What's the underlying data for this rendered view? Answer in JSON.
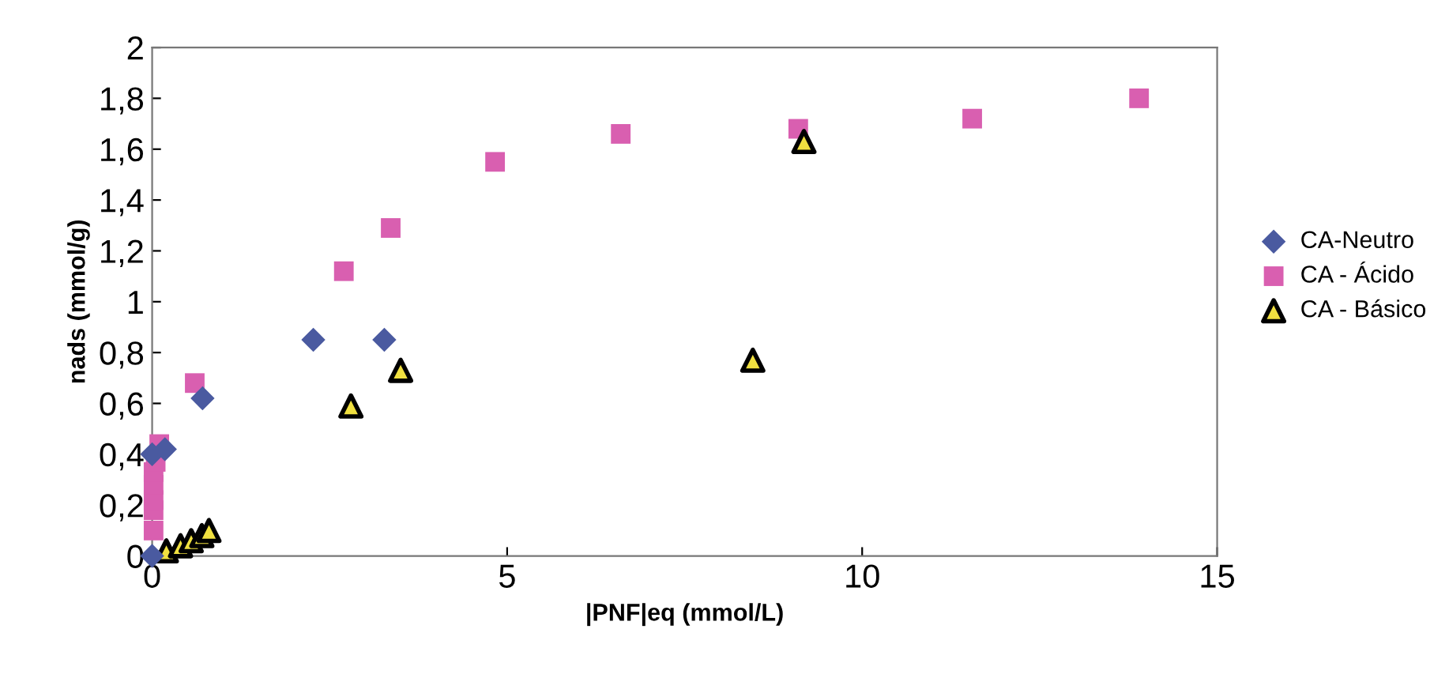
{
  "chart_data": {
    "type": "scatter",
    "xlabel": "|PNF|eq (mmol/L)",
    "ylabel": "nads (mmol/g)",
    "xlim": [
      0,
      15
    ],
    "xticks": [
      0,
      5,
      10,
      15
    ],
    "ylim": [
      0,
      2
    ],
    "yticks": [
      0,
      {
        "value": 0.2,
        "label": "0,2"
      },
      {
        "value": 0.4,
        "label": "0,4"
      },
      {
        "value": 0.6,
        "label": "0,6"
      },
      {
        "value": 0.8,
        "label": "0,8"
      },
      1,
      {
        "value": 1.2,
        "label": "1,2"
      },
      {
        "value": 1.4,
        "label": "1,4"
      },
      {
        "value": 1.6,
        "label": "1,6"
      },
      {
        "value": 1.8,
        "label": "1,8"
      },
      2
    ],
    "grid": false,
    "legend": "right",
    "series": [
      {
        "name": "CA-Neutro",
        "color": "#4a5aa0",
        "marker": "diamond",
        "x": [
          0,
          0.0,
          0.18,
          0.71,
          2.27,
          3.27
        ],
        "values": [
          0,
          0.4,
          0.42,
          0.62,
          0.85,
          0.85
        ]
      },
      {
        "name": "CA - Ácido",
        "color": "#d95fb0",
        "marker": "square",
        "x": [
          0.02,
          0.02,
          0.02,
          0.02,
          0.02,
          0.05,
          0.1,
          0.6,
          2.7,
          3.36,
          4.83,
          6.6,
          9.1,
          11.55,
          13.9
        ],
        "values": [
          0.1,
          0.18,
          0.22,
          0.28,
          0.33,
          0.37,
          0.44,
          0.68,
          1.12,
          1.29,
          1.55,
          1.66,
          1.68,
          1.72,
          1.8
        ]
      },
      {
        "name": "CA - Básico",
        "color": "#f0e040",
        "marker": "triangle",
        "x": [
          0.2,
          0.4,
          0.55,
          0.7,
          0.8,
          2.8,
          3.5,
          8.46,
          9.18
        ],
        "values": [
          0.02,
          0.04,
          0.06,
          0.08,
          0.1,
          0.59,
          0.73,
          0.77,
          1.63
        ]
      }
    ]
  }
}
